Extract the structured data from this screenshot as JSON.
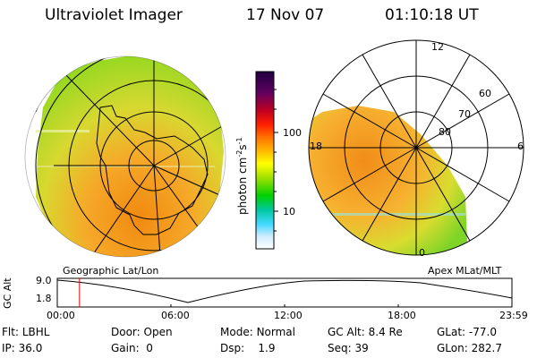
{
  "header": {
    "instrument": "Ultraviolet Imager",
    "date": "17 Nov 07",
    "time": "01:10:18 UT"
  },
  "colorbar": {
    "unit_label": "photon cm",
    "unit_exp1": "-2",
    "unit_s": "s",
    "unit_exp2": "-1",
    "ticks": [
      {
        "label": "100",
        "value": 100
      },
      {
        "label": "10",
        "value": 10
      }
    ],
    "colors": [
      "#ffffff",
      "#c8e8ff",
      "#40d8ff",
      "#00c8a0",
      "#00d000",
      "#a0e000",
      "#ffff00",
      "#ffb000",
      "#ff7000",
      "#ff2000",
      "#c00020",
      "#600060",
      "#200040"
    ]
  },
  "panels": {
    "left_label": "Geographic Lat/Lon",
    "right_label": "Apex MLat/MLT",
    "right_ring_labels": [
      "80",
      "70",
      "60"
    ],
    "right_mlt_labels": {
      "top": "12",
      "left": "18",
      "right": "6",
      "bottom": "0"
    }
  },
  "timeline": {
    "ylabel": "GC Alt",
    "y_ticks": [
      "9.0",
      "1.8"
    ],
    "x_ticks": [
      "00:00",
      "06:00",
      "12:00",
      "18:00",
      "23:59"
    ],
    "current_time_hours": 1.17
  },
  "status": {
    "flt_label": "Flt:",
    "flt_value": "LBHL",
    "ip_label": "IP:",
    "ip_value": "36.0",
    "door_label": "Door:",
    "door_value": "Open",
    "gain_label": "Gain:",
    "gain_value": "0",
    "mode_label": "Mode:",
    "mode_value": "Normal",
    "dsp_label": "Dsp:",
    "dsp_value": "1.9",
    "gcalt_label": "GC Alt:",
    "gcalt_value": "8.4 Re",
    "seq_label": "Seq:",
    "seq_value": "39",
    "glat_label": "GLat:",
    "glat_value": "-77.0",
    "glon_label": "GLon:",
    "glon_value": "282.7"
  }
}
